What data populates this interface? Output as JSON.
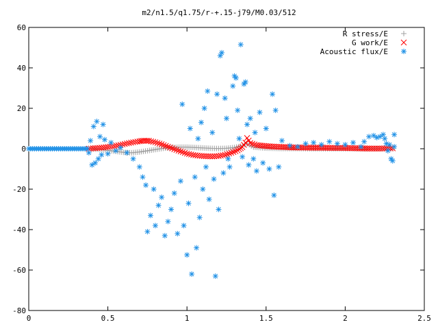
{
  "chart_data": {
    "type": "scatter",
    "title": "m2/n1.5/q1.75/r-+.15-j79/M0.03/512",
    "xlabel": "",
    "ylabel": "",
    "xlim": [
      0,
      2.5
    ],
    "ylim": [
      -80,
      60
    ],
    "x_ticks": [
      "0",
      "0.5",
      "1",
      "1.5",
      "2",
      "2.5"
    ],
    "y_ticks": [
      "60",
      "40",
      "20",
      "0",
      "-20",
      "-40",
      "-60",
      "-80"
    ],
    "grid": false,
    "legend_position": "top-right",
    "series": [
      {
        "name": "R stress/E",
        "marker": "+",
        "color": "#a0a0a0",
        "points": [
          [
            0.4,
            0.0
          ],
          [
            0.45,
            -0.3
          ],
          [
            0.5,
            -0.8
          ],
          [
            0.55,
            -1.3
          ],
          [
            0.6,
            -1.8
          ],
          [
            0.65,
            -2.0
          ],
          [
            0.7,
            -1.6
          ],
          [
            0.75,
            -1.0
          ],
          [
            0.8,
            -0.4
          ],
          [
            0.85,
            0.2
          ],
          [
            0.9,
            0.6
          ],
          [
            0.95,
            0.8
          ],
          [
            1.0,
            0.8
          ],
          [
            1.05,
            0.6
          ],
          [
            1.1,
            0.4
          ],
          [
            1.15,
            0.2
          ],
          [
            1.2,
            0.1
          ],
          [
            1.25,
            0.2
          ],
          [
            1.3,
            0.6
          ],
          [
            1.35,
            1.5
          ],
          [
            1.38,
            2.5
          ],
          [
            1.42,
            0.8
          ],
          [
            1.5,
            0.3
          ],
          [
            1.6,
            0.1
          ],
          [
            1.7,
            0.1
          ],
          [
            1.8,
            0.0
          ],
          [
            1.9,
            0.0
          ],
          [
            2.0,
            0.0
          ],
          [
            2.1,
            0.0
          ],
          [
            2.2,
            0.0
          ],
          [
            2.3,
            0.0
          ]
        ]
      },
      {
        "name": "G work/E",
        "marker": "x",
        "color": "#ff0000",
        "points": [
          [
            0.38,
            0.0
          ],
          [
            0.42,
            0.3
          ],
          [
            0.46,
            0.5
          ],
          [
            0.5,
            0.9
          ],
          [
            0.54,
            1.3
          ],
          [
            0.58,
            1.9
          ],
          [
            0.62,
            2.6
          ],
          [
            0.66,
            3.2
          ],
          [
            0.7,
            3.7
          ],
          [
            0.73,
            4.0
          ],
          [
            0.76,
            3.9
          ],
          [
            0.8,
            3.2
          ],
          [
            0.84,
            2.2
          ],
          [
            0.88,
            1.0
          ],
          [
            0.92,
            -0.2
          ],
          [
            0.96,
            -1.3
          ],
          [
            1.0,
            -2.4
          ],
          [
            1.04,
            -3.1
          ],
          [
            1.08,
            -3.5
          ],
          [
            1.12,
            -3.7
          ],
          [
            1.16,
            -3.8
          ],
          [
            1.2,
            -3.6
          ],
          [
            1.24,
            -3.0
          ],
          [
            1.28,
            -2.0
          ],
          [
            1.32,
            -0.8
          ],
          [
            1.35,
            0.8
          ],
          [
            1.37,
            3.0
          ],
          [
            1.38,
            5.3
          ],
          [
            1.4,
            2.8
          ],
          [
            1.44,
            1.8
          ],
          [
            1.5,
            1.3
          ],
          [
            1.56,
            1.0
          ],
          [
            1.62,
            0.8
          ],
          [
            1.68,
            0.6
          ],
          [
            1.74,
            0.6
          ],
          [
            1.8,
            0.5
          ],
          [
            1.86,
            0.5
          ],
          [
            1.92,
            0.4
          ],
          [
            1.98,
            0.4
          ],
          [
            2.04,
            0.3
          ],
          [
            2.1,
            0.2
          ],
          [
            2.16,
            0.1
          ],
          [
            2.22,
            0.1
          ],
          [
            2.26,
            0.2
          ],
          [
            2.3,
            0.2
          ]
        ]
      },
      {
        "name": "Acoustic flux/E",
        "marker": "*",
        "color": "#1e90e6",
        "points": [
          [
            0.0,
            0.0
          ],
          [
            0.05,
            0.0
          ],
          [
            0.1,
            0.0
          ],
          [
            0.15,
            0.0
          ],
          [
            0.2,
            0.0
          ],
          [
            0.25,
            0.0
          ],
          [
            0.3,
            0.0
          ],
          [
            0.35,
            0.0
          ],
          [
            0.37,
            0.0
          ],
          [
            0.38,
            -2.0
          ],
          [
            0.39,
            4.0
          ],
          [
            0.4,
            -8.0
          ],
          [
            0.41,
            11.0
          ],
          [
            0.42,
            -7.0
          ],
          [
            0.43,
            13.5
          ],
          [
            0.44,
            -5.0
          ],
          [
            0.45,
            6.0
          ],
          [
            0.46,
            -3.0
          ],
          [
            0.47,
            12.0
          ],
          [
            0.48,
            4.5
          ],
          [
            0.5,
            -2.5
          ],
          [
            0.52,
            3.0
          ],
          [
            0.55,
            -1.0
          ],
          [
            0.58,
            0.5
          ],
          [
            0.62,
            -2.0
          ],
          [
            0.66,
            -5.0
          ],
          [
            0.7,
            -9.0
          ],
          [
            0.72,
            -14.0
          ],
          [
            0.74,
            -18.0
          ],
          [
            0.75,
            -41.0
          ],
          [
            0.77,
            -33.0
          ],
          [
            0.79,
            -20.0
          ],
          [
            0.8,
            -38.0
          ],
          [
            0.82,
            -28.0
          ],
          [
            0.84,
            -24.0
          ],
          [
            0.86,
            -43.0
          ],
          [
            0.88,
            -36.0
          ],
          [
            0.9,
            -30.0
          ],
          [
            0.92,
            -22.0
          ],
          [
            0.94,
            -42.0
          ],
          [
            0.96,
            -16.0
          ],
          [
            0.97,
            22.0
          ],
          [
            0.98,
            -38.0
          ],
          [
            1.0,
            -52.5
          ],
          [
            1.01,
            -27.0
          ],
          [
            1.02,
            10.0
          ],
          [
            1.03,
            -62.0
          ],
          [
            1.05,
            -14.0
          ],
          [
            1.06,
            -49.0
          ],
          [
            1.07,
            5.0
          ],
          [
            1.08,
            -34.0
          ],
          [
            1.09,
            13.0
          ],
          [
            1.1,
            -20.0
          ],
          [
            1.11,
            20.0
          ],
          [
            1.12,
            -9.0
          ],
          [
            1.13,
            28.5
          ],
          [
            1.14,
            -25.0
          ],
          [
            1.16,
            8.0
          ],
          [
            1.17,
            -15.0
          ],
          [
            1.18,
            -63.0
          ],
          [
            1.19,
            27.0
          ],
          [
            1.2,
            -30.0
          ],
          [
            1.21,
            46.0
          ],
          [
            1.22,
            47.5
          ],
          [
            1.23,
            -12.0
          ],
          [
            1.24,
            25.0
          ],
          [
            1.25,
            15.0
          ],
          [
            1.26,
            -5.0
          ],
          [
            1.27,
            -9.0
          ],
          [
            1.29,
            31.0
          ],
          [
            1.3,
            36.0
          ],
          [
            1.31,
            35.0
          ],
          [
            1.32,
            19.0
          ],
          [
            1.33,
            5.0
          ],
          [
            1.34,
            51.5
          ],
          [
            1.35,
            -4.0
          ],
          [
            1.36,
            32.0
          ],
          [
            1.37,
            33.0
          ],
          [
            1.38,
            12.0
          ],
          [
            1.39,
            -8.0
          ],
          [
            1.4,
            15.0
          ],
          [
            1.42,
            -5.0
          ],
          [
            1.43,
            8.0
          ],
          [
            1.44,
            -11.0
          ],
          [
            1.46,
            18.0
          ],
          [
            1.48,
            -7.0
          ],
          [
            1.5,
            10.0
          ],
          [
            1.52,
            -10.0
          ],
          [
            1.54,
            27.0
          ],
          [
            1.55,
            -23.0
          ],
          [
            1.56,
            19.0
          ],
          [
            1.58,
            -9.0
          ],
          [
            1.6,
            4.0
          ],
          [
            1.65,
            1.5
          ],
          [
            1.7,
            1.0
          ],
          [
            1.75,
            2.5
          ],
          [
            1.8,
            3.0
          ],
          [
            1.85,
            2.0
          ],
          [
            1.9,
            3.5
          ],
          [
            1.95,
            2.5
          ],
          [
            2.0,
            2.0
          ],
          [
            2.05,
            3.0
          ],
          [
            2.1,
            1.0
          ],
          [
            2.12,
            3.5
          ],
          [
            2.15,
            6.0
          ],
          [
            2.18,
            6.5
          ],
          [
            2.2,
            5.5
          ],
          [
            2.22,
            6.0
          ],
          [
            2.24,
            7.0
          ],
          [
            2.25,
            5.0
          ],
          [
            2.26,
            2.5
          ],
          [
            2.27,
            -1.0
          ],
          [
            2.28,
            2.0
          ],
          [
            2.29,
            -5.0
          ],
          [
            2.3,
            -6.0
          ],
          [
            2.31,
            1.0
          ],
          [
            2.31,
            7.0
          ]
        ]
      }
    ]
  }
}
